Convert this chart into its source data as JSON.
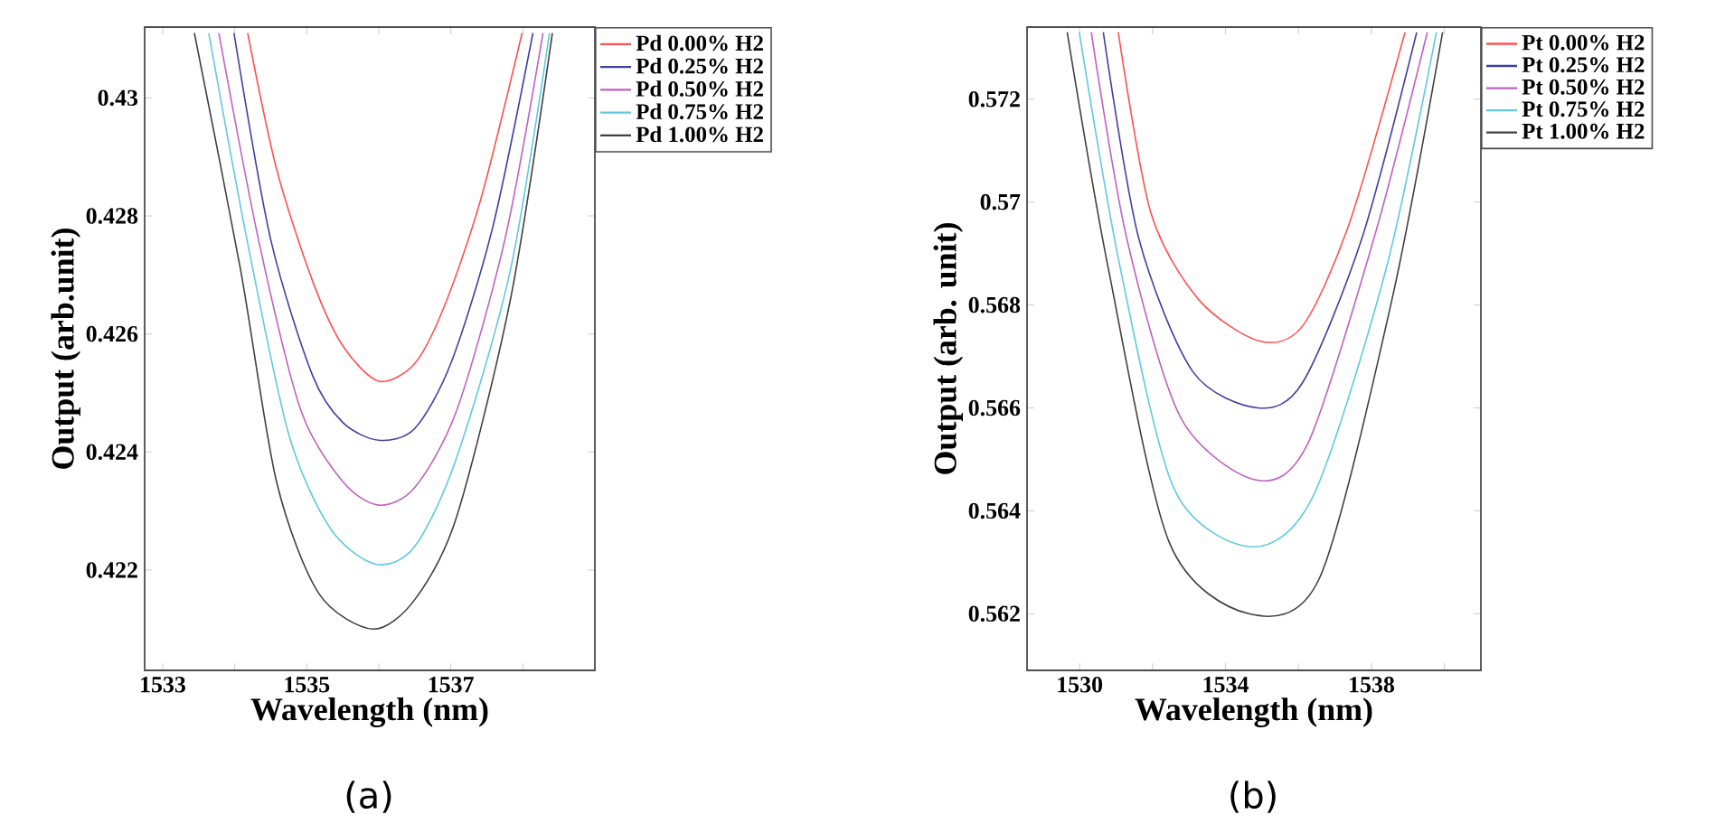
{
  "chart_data": [
    {
      "type": "line",
      "xlabel": "Wavelength (nm)",
      "ylabel": "Output (arb.unit)",
      "annotations": [
        "(a)"
      ],
      "legend": "top right",
      "marker": "none",
      "xlim": [
        1532.75,
        1539
      ],
      "ylim": [
        0.4203,
        0.4312
      ],
      "xticks": [
        1533,
        {
          "value": 1534,
          "label": null
        },
        1535,
        {
          "value": 1536,
          "label": null
        },
        1537,
        {
          "value": 1538,
          "label": null
        }
      ],
      "yticks": [
        0.422,
        0.424,
        0.426,
        0.428,
        0.43
      ],
      "series": [
        {
          "name": "Pd 0.00% H2",
          "color": "#ff5050",
          "x": [
            1534.18,
            1534.58,
            1535.08,
            1535.5,
            1536.0,
            1536.5,
            1536.92,
            1537.42,
            1537.99
          ],
          "values": [
            0.4311,
            0.4288,
            0.4269,
            0.4258,
            0.4252,
            0.4255,
            0.4265,
            0.4283,
            0.4311
          ]
        },
        {
          "name": "Pd 0.25% H2",
          "color": "#4040a0",
          "x": [
            1533.99,
            1534.5,
            1535.08,
            1535.5,
            1536.0,
            1536.5,
            1537.0,
            1537.58,
            1538.14
          ],
          "values": [
            0.4311,
            0.4276,
            0.4253,
            0.4245,
            0.4242,
            0.4244,
            0.4255,
            0.4278,
            0.4311
          ]
        },
        {
          "name": "Pd 0.50% H2",
          "color": "#c060c0",
          "x": [
            1533.78,
            1534.33,
            1534.92,
            1535.5,
            1536.0,
            1536.5,
            1537.08,
            1537.75,
            1538.28
          ],
          "values": [
            0.4311,
            0.4276,
            0.4247,
            0.4235,
            0.4231,
            0.4234,
            0.4247,
            0.4276,
            0.4311
          ]
        },
        {
          "name": "Pd 0.75% H2",
          "color": "#60c8e0",
          "x": [
            1533.64,
            1534.17,
            1534.75,
            1535.33,
            1535.96,
            1536.5,
            1537.08,
            1537.83,
            1538.37
          ],
          "values": [
            0.4311,
            0.4276,
            0.4243,
            0.4227,
            0.4221,
            0.4224,
            0.4239,
            0.4271,
            0.4311
          ]
        },
        {
          "name": "Pd 1.00% H2",
          "color": "#404040",
          "x": [
            1533.44,
            1534.08,
            1534.58,
            1535.17,
            1535.92,
            1536.5,
            1537.08,
            1537.83,
            1538.41
          ],
          "values": [
            0.4311,
            0.4271,
            0.4235,
            0.4216,
            0.421,
            0.4215,
            0.4229,
            0.4266,
            0.4311
          ]
        }
      ]
    },
    {
      "type": "line",
      "xlabel": "Wavelength (nm)",
      "ylabel": "Output (arb. unit)",
      "annotations": [
        "(b)"
      ],
      "legend": "top right",
      "marker": "none",
      "xlim": [
        1528.56,
        1541
      ],
      "ylim": [
        0.5609,
        0.5734
      ],
      "xticks": [
        1530,
        {
          "value": 1532,
          "label": null
        },
        1534,
        {
          "value": 1536,
          "label": null
        },
        1538,
        {
          "value": 1540,
          "label": null
        }
      ],
      "yticks": [
        0.562,
        0.564,
        0.566,
        0.568,
        0.57,
        0.572
      ],
      "series": [
        {
          "name": "Pt 0.00% H2",
          "color": "#ff5050",
          "x": [
            1531.06,
            1531.95,
            1533.27,
            1534.93,
            1536.12,
            1537.4,
            1538.92
          ],
          "values": [
            0.5733,
            0.5698,
            0.5681,
            0.5673,
            0.5676,
            0.5696,
            0.5733
          ]
        },
        {
          "name": "Pt 0.25% H2",
          "color": "#4040a0",
          "x": [
            1530.65,
            1531.62,
            1533.11,
            1534.89,
            1536.12,
            1537.74,
            1539.24
          ],
          "values": [
            0.5733,
            0.5693,
            0.5667,
            0.566,
            0.5665,
            0.5693,
            0.5733
          ]
        },
        {
          "name": "Pt 0.50% H2",
          "color": "#c060c0",
          "x": [
            1530.32,
            1531.29,
            1532.78,
            1534.84,
            1536.25,
            1538.07,
            1539.53
          ],
          "values": [
            0.5733,
            0.5693,
            0.5658,
            0.5646,
            0.5653,
            0.5693,
            0.5733
          ]
        },
        {
          "name": "Pt 0.75% H2",
          "color": "#60c8e0",
          "x": [
            1529.99,
            1531.12,
            1532.61,
            1534.73,
            1536.41,
            1538.4,
            1539.78
          ],
          "values": [
            0.5733,
            0.5687,
            0.5644,
            0.5633,
            0.5643,
            0.5687,
            0.5733
          ]
        },
        {
          "name": "Pt 1.00% H2",
          "color": "#404040",
          "x": [
            1529.66,
            1530.79,
            1532.45,
            1534.64,
            1536.58,
            1538.56,
            1539.95
          ],
          "values": [
            0.5733,
            0.5687,
            0.5634,
            0.562,
            0.5627,
            0.5681,
            0.5733
          ]
        }
      ]
    }
  ]
}
